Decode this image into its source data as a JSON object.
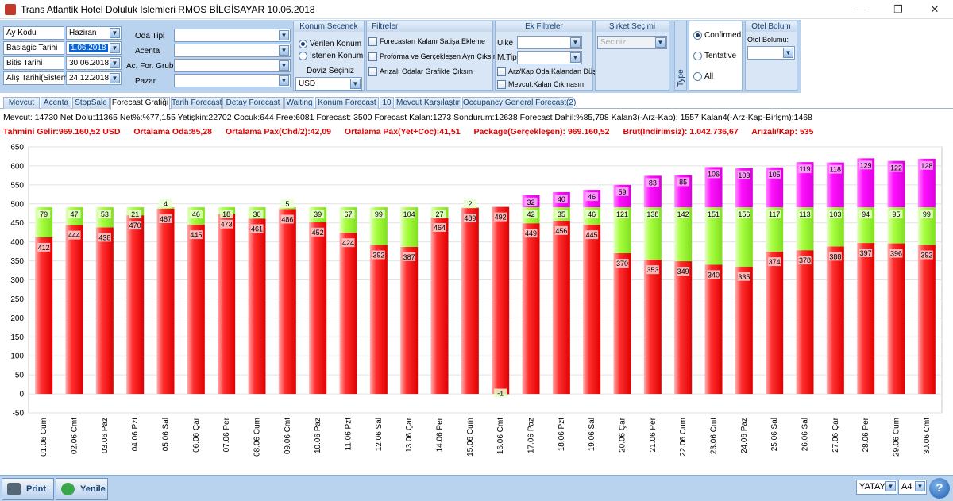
{
  "window": {
    "title": "Trans Atlantik Hotel Doluluk Islemleri RMOS BİLGİSAYAR 10.06.2018",
    "minimize": "—",
    "restore": "❐",
    "close": "✕"
  },
  "filters": {
    "ay_kodu_label": "Ay Kodu",
    "ay_kodu_value": "Haziran",
    "baslangic_label": "Baslagic Tarihi",
    "baslangic_value": "1.06.2018",
    "bitis_label": "Bitis Tarihi",
    "bitis_value": "30.06.2018",
    "alis_label": "Alış Tarihi(Sistem)",
    "alis_value": "24.12.2018",
    "oda_tipi_label": "Oda Tipi",
    "acenta_label": "Acenta",
    "ac_for_grubu_label": "Ac. For. Grubu",
    "pazar_label": "Pazar"
  },
  "konum": {
    "header": "Konum Secenek",
    "verilen": "Verilen Konum",
    "istenen": "Istenen Konum",
    "doviz_label": "Doviz Seçiniz",
    "doviz_value": "USD"
  },
  "filtreler": {
    "header": "Filtreler",
    "opt1": "Forecastan Kalanı Satişa Ekleme",
    "opt2": "Proforma ve Gerçekleşen Ayrı Çıksın",
    "opt3": "Arızalı Odalar Grafikte Çıksın"
  },
  "ek_filtreler": {
    "header": "Ek Filtreler",
    "ulke_label": "Ulke",
    "mtipi_label": "M.Tipi",
    "opt1": "Arz/Kap Oda Kalandan Düş",
    "opt2": "Mevcut.Kalan Cıkmasın"
  },
  "sirket": {
    "header": "Şirket Seçimi",
    "placeholder": "Seciniz"
  },
  "type_panel": {
    "label": "Type",
    "confirmed": "Confirmed",
    "tentative": "Tentative",
    "all": "All"
  },
  "otel": {
    "header": "Otel Bolum",
    "label": "Otel Bolumu:"
  },
  "tabs": [
    "Mevcut",
    "Acenta",
    "StopSale",
    "Forecast Grafiği",
    "Tarih Forecast",
    "Detay Forecast",
    "Waiting",
    "Konum Forecast",
    "10",
    "Mevcut Karşılaştır",
    "Occupancy General Forecast(2)"
  ],
  "stats": {
    "line1": "Mevcut:  14730 Net Dolu:11365 Net%:%77,155 Yetişkin:22702 Cocuk:644 Free:6081     Forecast: 3500 Forecast Kalan:1273 Sondurum:12638 Forecast Dahil:%85,798 Kalan3(-Arz-Kap): 1557 Kalan4(-Arz-Kap-Birlşm):1468",
    "tahmini": "Tahmini Gelir:969.160,52 USD",
    "ort_oda": "Ortalama Oda:85,28",
    "ort_pax_chd": "Ortalama Pax(Chd/2):42,09",
    "ort_pax_yet": "Ortalama Pax(Yet+Coc):41,51",
    "package": "Package(Gerçekleşen): 969.160,52",
    "brut": "Brut(Indirimsiz): 1.042.736,67",
    "arizali": "Arızalı/Kap: 535"
  },
  "bottom": {
    "print": "Print",
    "yenile": "Yenile",
    "orientation": "YATAY",
    "paper": "A4",
    "help": "?"
  },
  "colors": {
    "red": "#ff2020",
    "green": "#99ff33",
    "magenta": "#ff00ff",
    "panel": "#b9d3ee"
  },
  "chart_data": {
    "type": "bar",
    "stacked": true,
    "ylim": [
      -50,
      650
    ],
    "yticks": [
      -50,
      0,
      50,
      100,
      150,
      200,
      250,
      300,
      350,
      400,
      450,
      500,
      550,
      600,
      650
    ],
    "grid": true,
    "categories": [
      "01.06 Cum",
      "02.06 Cmt",
      "03.06 Paz",
      "04.06 Pzt",
      "05.06 Sal",
      "06.06 Çar",
      "07.06 Per",
      "08.06 Cum",
      "09.06 Cmt",
      "10.06 Paz",
      "11.06 Pzt",
      "12.06 Sal",
      "13.06 Çar",
      "14.06 Per",
      "15.06 Cum",
      "16.06 Cmt",
      "17.06 Paz",
      "18.06 Pzt",
      "19.06 Sal",
      "20.06 Çar",
      "21.06 Per",
      "22.06 Cum",
      "23.06 Cmt",
      "24.06 Paz",
      "25.06 Sal",
      "26.06 Sal",
      "27.06 Çar",
      "28.06 Per",
      "29.06 Cum",
      "30.06 Cmt"
    ],
    "series": [
      {
        "color": "#ff2020",
        "values": [
          412,
          444,
          438,
          470,
          487,
          445,
          473,
          461,
          486,
          452,
          424,
          392,
          387,
          464,
          489,
          492,
          449,
          456,
          445,
          370,
          353,
          349,
          340,
          335,
          374,
          378,
          388,
          397,
          396,
          392
        ]
      },
      {
        "color": "#99ff33",
        "values": [
          79,
          47,
          53,
          21,
          4,
          46,
          18,
          30,
          5,
          39,
          67,
          99,
          104,
          27,
          2,
          -1,
          42,
          35,
          46,
          121,
          138,
          142,
          151,
          156,
          117,
          113,
          103,
          94,
          95,
          99
        ]
      },
      {
        "color": "#ff00ff",
        "values": [
          0,
          0,
          0,
          0,
          0,
          0,
          0,
          0,
          0,
          0,
          0,
          0,
          0,
          0,
          0,
          0,
          32,
          40,
          46,
          59,
          83,
          85,
          106,
          103,
          105,
          119,
          118,
          129,
          122,
          128
        ]
      }
    ]
  }
}
